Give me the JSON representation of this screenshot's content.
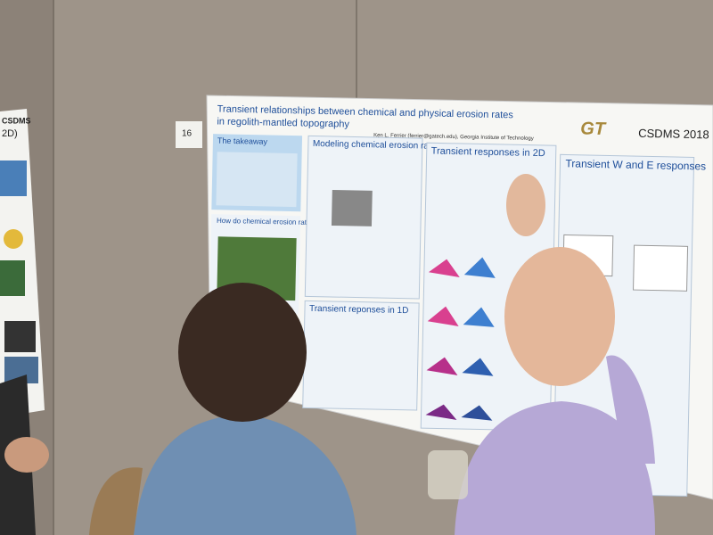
{
  "board_number": "16",
  "side_poster": {
    "logo": "CSDMS",
    "heading": "2D)"
  },
  "poster": {
    "title": "Transient relationships between chemical and physical erosion rates",
    "title_line2": "in regolith-mantled topography",
    "author": "Ken L. Ferrier (ferrier@gatech.edu), Georgia Institute of Technology",
    "logo": "GT",
    "conference": "CSDMS 2018",
    "sections": [
      "The takeaway",
      "How do chemical erosion rates respond to physical erosion?",
      "Modeling chemical erosion rates",
      "Transient reponses in 1D",
      "Transient responses in 2D",
      "Transient W and E responses"
    ]
  }
}
